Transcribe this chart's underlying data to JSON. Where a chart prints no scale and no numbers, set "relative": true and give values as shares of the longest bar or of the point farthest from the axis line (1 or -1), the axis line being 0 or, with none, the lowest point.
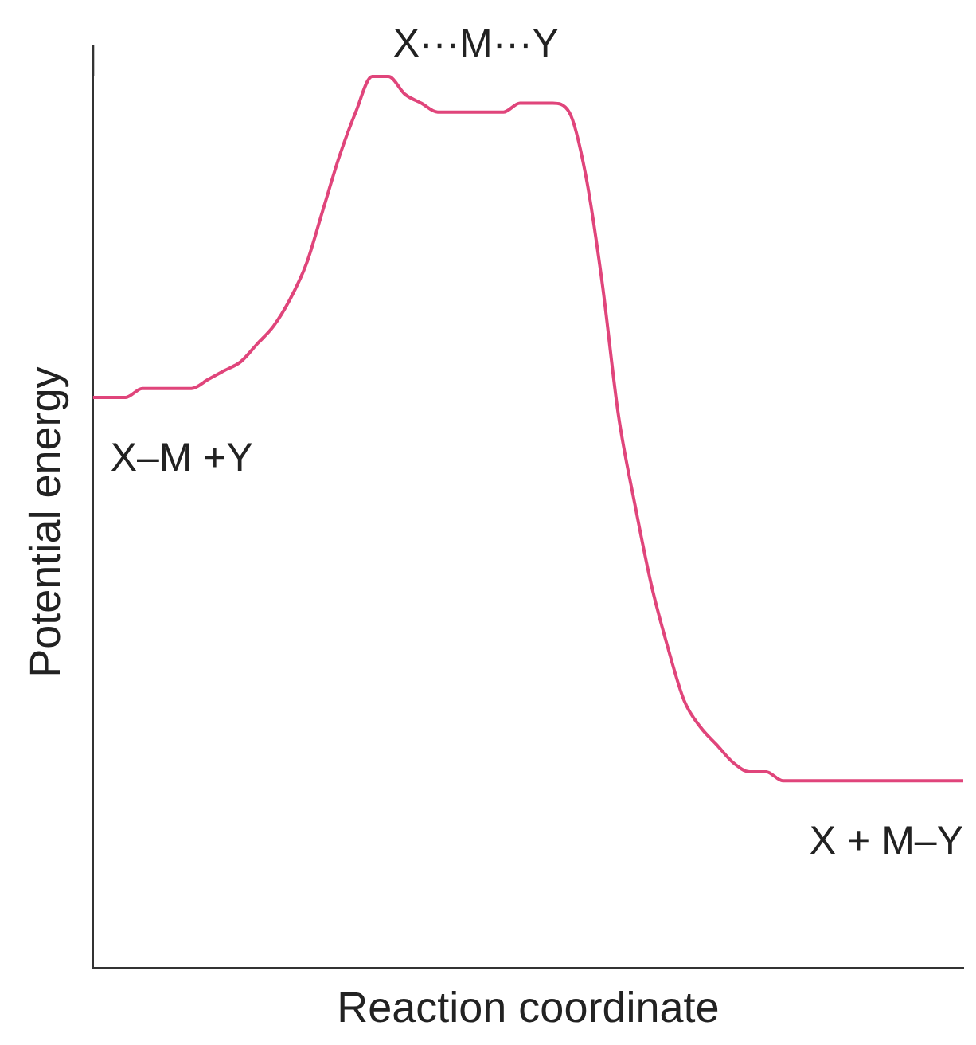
{
  "chart_data": {
    "type": "line",
    "relative": true,
    "xlabel": "Reaction coordinate",
    "ylabel": "Potential energy",
    "categories": [
      null,
      null,
      null,
      null,
      null,
      null,
      null,
      null,
      null,
      null,
      null,
      null,
      null,
      null,
      null,
      null,
      null,
      null,
      null,
      null,
      null,
      null,
      null,
      null,
      null,
      null,
      null,
      null,
      null,
      null,
      null,
      null,
      null,
      null,
      null,
      null,
      null,
      null,
      null,
      null,
      null,
      null,
      null,
      null,
      null,
      null,
      null,
      null,
      null,
      null,
      null,
      null,
      null,
      null
    ],
    "series": [
      {
        "color": "#e0457b",
        "values": [
          0.64,
          0.64,
          0.64,
          0.65,
          0.65,
          0.65,
          0.65,
          0.66,
          0.67,
          0.68,
          0.7,
          0.72,
          0.75,
          0.79,
          0.85,
          0.91,
          0.96,
          1.0,
          1.0,
          0.98,
          0.97,
          0.96,
          0.96,
          0.96,
          0.96,
          0.96,
          0.97,
          0.97,
          0.97,
          0.96,
          0.89,
          0.77,
          0.62,
          0.52,
          0.43,
          0.36,
          0.3,
          0.27,
          0.25,
          0.23,
          0.22,
          0.22,
          0.21,
          0.21,
          0.21,
          0.21,
          0.21,
          0.21,
          0.21,
          0.21,
          0.21,
          0.21,
          0.21,
          0.21
        ]
      }
    ],
    "annotations": [
      "X···M···Y",
      "X–M +Y",
      "X + M–Y"
    ],
    "grid": false,
    "legend": false,
    "marker": "none",
    "line_style": "solid"
  }
}
